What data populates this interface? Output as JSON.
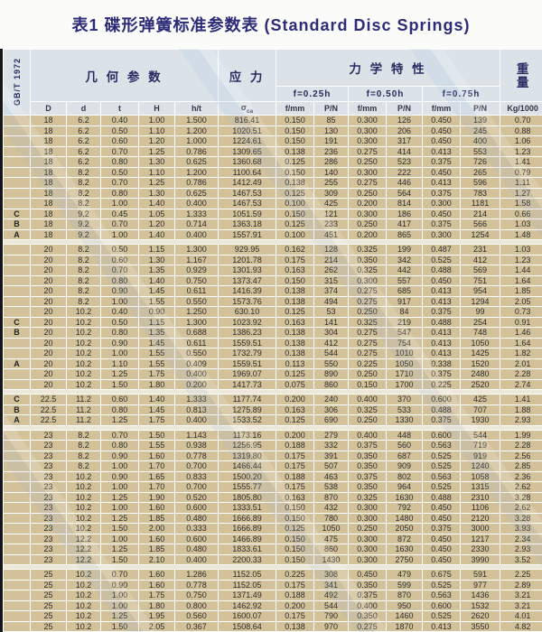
{
  "title": "表1 碟形弹簧标准参数表 (Standard Disc Springs)",
  "table": {
    "standard_label": "GB/T 1972",
    "groups": {
      "geometry": "几 何 参 数",
      "stress": "应 力",
      "mechanical": "力 学 特 性",
      "weight_line1": "重",
      "weight_line2": "量"
    },
    "deflection_headers": [
      "f=0.25h",
      "f=0.50h",
      "f=0.75h"
    ],
    "stress_symbol": "σ",
    "stress_subscript": "ca",
    "columns": [
      "D",
      "d",
      "t",
      "H",
      "h/t",
      "f/mm",
      "P/N",
      "f/mm",
      "P/N",
      "f/mm",
      "P/N",
      "Kg/1000"
    ],
    "blocks": [
      {
        "rows": [
          [
            "",
            "18",
            "6.2",
            "0.40",
            "1.00",
            "1.500",
            "816.41",
            "0.150",
            "85",
            "0.300",
            "126",
            "0.450",
            "139",
            "0.70"
          ],
          [
            "",
            "18",
            "6.2",
            "0.50",
            "1.10",
            "1.200",
            "1020.51",
            "0.150",
            "130",
            "0.300",
            "206",
            "0.450",
            "245",
            "0.88"
          ],
          [
            "",
            "18",
            "6.2",
            "0.60",
            "1.20",
            "1.000",
            "1224.61",
            "0.150",
            "191",
            "0.300",
            "317",
            "0.450",
            "400",
            "1.06"
          ],
          [
            "",
            "18",
            "6.2",
            "0.70",
            "1.25",
            "0.786",
            "1309.65",
            "0.138",
            "236",
            "0.275",
            "414",
            "0.413",
            "553",
            "1.23"
          ],
          [
            "",
            "18",
            "6.2",
            "0.80",
            "1.30",
            "0.625",
            "1360.68",
            "0.125",
            "286",
            "0.250",
            "523",
            "0.375",
            "726",
            "1.41"
          ],
          [
            "",
            "18",
            "8.2",
            "0.50",
            "1.10",
            "1.200",
            "1100.64",
            "0.150",
            "140",
            "0.300",
            "222",
            "0.450",
            "265",
            "0.79"
          ],
          [
            "",
            "18",
            "8.2",
            "0.70",
            "1.25",
            "0.786",
            "1412.49",
            "0.138",
            "255",
            "0.275",
            "446",
            "0.413",
            "596",
            "1.11"
          ],
          [
            "",
            "18",
            "8.2",
            "0.80",
            "1.30",
            "0.625",
            "1467.53",
            "0.125",
            "309",
            "0.250",
            "564",
            "0.375",
            "783",
            "1.27"
          ],
          [
            "",
            "18",
            "8.2",
            "1.00",
            "1.40",
            "0.400",
            "1467.53",
            "0.100",
            "425",
            "0.200",
            "814",
            "0.300",
            "1181",
            "1.58"
          ],
          [
            "C",
            "18",
            "9.2",
            "0.45",
            "1.05",
            "1.333",
            "1051.59",
            "0.150",
            "121",
            "0.300",
            "186",
            "0.450",
            "214",
            "0.66"
          ],
          [
            "B",
            "18",
            "9.2",
            "0.70",
            "1.20",
            "0.714",
            "1363.18",
            "0.125",
            "233",
            "0.250",
            "417",
            "0.375",
            "566",
            "1.03"
          ],
          [
            "A",
            "18",
            "9.2",
            "1.00",
            "1.40",
            "0.400",
            "1557.91",
            "0.100",
            "451",
            "0.200",
            "865",
            "0.300",
            "1254",
            "1.48"
          ]
        ]
      },
      {
        "rows": [
          [
            "",
            "20",
            "8.2",
            "0.50",
            "1.15",
            "1.300",
            "929.95",
            "0.162",
            "128",
            "0.325",
            "199",
            "0.487",
            "231",
            "1.03"
          ],
          [
            "",
            "20",
            "8.2",
            "0.60",
            "1.30",
            "1.167",
            "1201.78",
            "0.175",
            "214",
            "0.350",
            "342",
            "0.525",
            "412",
            "1.23"
          ],
          [
            "",
            "20",
            "8.2",
            "0.70",
            "1.35",
            "0.929",
            "1301.93",
            "0.163",
            "262",
            "0.325",
            "442",
            "0.488",
            "569",
            "1.44"
          ],
          [
            "",
            "20",
            "8.2",
            "0.80",
            "1.40",
            "0.750",
            "1373.47",
            "0.150",
            "315",
            "0.300",
            "557",
            "0.450",
            "751",
            "1.64"
          ],
          [
            "",
            "20",
            "8.2",
            "0.90",
            "1.45",
            "0.611",
            "1416.39",
            "0.138",
            "374",
            "0.275",
            "685",
            "0.413",
            "954",
            "1.85"
          ],
          [
            "",
            "20",
            "8.2",
            "1.00",
            "1.55",
            "0.550",
            "1573.76",
            "0.138",
            "494",
            "0.275",
            "917",
            "0.413",
            "1294",
            "2.05"
          ],
          [
            "",
            "20",
            "10.2",
            "0.40",
            "0.90",
            "1.250",
            "630.10",
            "0.125",
            "53",
            "0.250",
            "84",
            "0.375",
            "99",
            "0.73"
          ],
          [
            "C",
            "20",
            "10.2",
            "0.50",
            "1.15",
            "1.300",
            "1023.92",
            "0.163",
            "141",
            "0.325",
            "219",
            "0.488",
            "254",
            "0.91"
          ],
          [
            "B",
            "20",
            "10.2",
            "0.80",
            "1.35",
            "0.688",
            "1386.23",
            "0.138",
            "304",
            "0.275",
            "547",
            "0.413",
            "748",
            "1.46"
          ],
          [
            "",
            "20",
            "10.2",
            "0.90",
            "1.45",
            "0.611",
            "1559.51",
            "0.138",
            "412",
            "0.275",
            "754",
            "0.413",
            "1050",
            "1.64"
          ],
          [
            "",
            "20",
            "10.2",
            "1.00",
            "1.55",
            "0.550",
            "1732.79",
            "0.138",
            "544",
            "0.275",
            "1010",
            "0.413",
            "1425",
            "1.82"
          ],
          [
            "A",
            "20",
            "10.2",
            "1.10",
            "1.55",
            "0.409",
            "1559.51",
            "0.113",
            "550",
            "0.225",
            "1050",
            "0.338",
            "1520",
            "2.01"
          ],
          [
            "",
            "20",
            "10.2",
            "1.25",
            "1.75",
            "0.400",
            "1969.07",
            "0.125",
            "890",
            "0.250",
            "1710",
            "0.375",
            "2480",
            "2.28"
          ],
          [
            "",
            "20",
            "10.2",
            "1.50",
            "1.80",
            "0.200",
            "1417.73",
            "0.075",
            "860",
            "0.150",
            "1700",
            "0.225",
            "2520",
            "2.74"
          ]
        ]
      },
      {
        "rows": [
          [
            "C",
            "22.5",
            "11.2",
            "0.60",
            "1.40",
            "1.333",
            "1177.74",
            "0.200",
            "240",
            "0.400",
            "370",
            "0.600",
            "425",
            "1.41"
          ],
          [
            "B",
            "22.5",
            "11.2",
            "0.80",
            "1.45",
            "0.813",
            "1275.89",
            "0.163",
            "306",
            "0.325",
            "533",
            "0.488",
            "707",
            "1.88"
          ],
          [
            "A",
            "22.5",
            "11.2",
            "1.25",
            "1.75",
            "0.400",
            "1533.52",
            "0.125",
            "690",
            "0.250",
            "1330",
            "0.375",
            "1930",
            "2.93"
          ]
        ]
      },
      {
        "rows": [
          [
            "",
            "23",
            "8.2",
            "0.70",
            "1.50",
            "1.143",
            "1173.16",
            "0.200",
            "279",
            "0.400",
            "448",
            "0.600",
            "544",
            "1.99"
          ],
          [
            "",
            "23",
            "8.2",
            "0.80",
            "1.55",
            "0.938",
            "1256.95",
            "0.188",
            "332",
            "0.375",
            "560",
            "0.563",
            "719",
            "2.28"
          ],
          [
            "",
            "23",
            "8.2",
            "0.90",
            "1.60",
            "0.778",
            "1319.80",
            "0.175",
            "391",
            "0.350",
            "687",
            "0.525",
            "919",
            "2.56"
          ],
          [
            "",
            "23",
            "8.2",
            "1.00",
            "1.70",
            "0.700",
            "1466.44",
            "0.175",
            "507",
            "0.350",
            "909",
            "0.525",
            "1240",
            "2.85"
          ],
          [
            "",
            "23",
            "10.2",
            "0.90",
            "1.65",
            "0.833",
            "1500.20",
            "0.188",
            "463",
            "0.375",
            "802",
            "0.563",
            "1058",
            "2.36"
          ],
          [
            "",
            "23",
            "10.2",
            "1.00",
            "1.70",
            "0.700",
            "1555.77",
            "0.175",
            "538",
            "0.350",
            "964",
            "0.525",
            "1315",
            "2.62"
          ],
          [
            "",
            "23",
            "10.2",
            "1.25",
            "1.90",
            "0.520",
            "1805.80",
            "0.163",
            "870",
            "0.325",
            "1630",
            "0.488",
            "2310",
            "3.28"
          ],
          [
            "",
            "23",
            "10.2",
            "1.00",
            "1.60",
            "0.600",
            "1333.51",
            "0.150",
            "432",
            "0.300",
            "792",
            "0.450",
            "1106",
            "2.62"
          ],
          [
            "",
            "23",
            "10.2",
            "1.25",
            "1.85",
            "0.480",
            "1666.89",
            "0.150",
            "780",
            "0.300",
            "1480",
            "0.450",
            "2120",
            "3.28"
          ],
          [
            "",
            "23",
            "10.2",
            "1.50",
            "2.00",
            "0.333",
            "1666.89",
            "0.125",
            "1050",
            "0.250",
            "2050",
            "0.375",
            "3000",
            "3.93"
          ],
          [
            "",
            "23",
            "12.2",
            "1.00",
            "1.60",
            "0.600",
            "1466.89",
            "0.150",
            "475",
            "0.300",
            "872",
            "0.450",
            "1217",
            "2.34"
          ],
          [
            "",
            "23",
            "12.2",
            "1.25",
            "1.85",
            "0.480",
            "1833.61",
            "0.150",
            "860",
            "0.300",
            "1630",
            "0.450",
            "2330",
            "2.93"
          ],
          [
            "",
            "23",
            "12.2",
            "1.50",
            "2.10",
            "0.400",
            "2200.33",
            "0.150",
            "1430",
            "0.300",
            "2750",
            "0.450",
            "3990",
            "3.52"
          ]
        ]
      },
      {
        "rows": [
          [
            "",
            "25",
            "10.2",
            "0.70",
            "1.60",
            "1.286",
            "1152.05",
            "0.225",
            "308",
            "0.450",
            "479",
            "0.675",
            "591",
            "2.25"
          ],
          [
            "",
            "25",
            "10.2",
            "0.90",
            "1.60",
            "0.778",
            "1152.05",
            "0.175",
            "341",
            "0.350",
            "599",
            "0.525",
            "977",
            "2.89"
          ],
          [
            "",
            "25",
            "10.2",
            "1.00",
            "1.75",
            "0.750",
            "1371.49",
            "0.188",
            "492",
            "0.375",
            "870",
            "0.563",
            "1436",
            "3.21"
          ],
          [
            "",
            "25",
            "10.2",
            "1.00",
            "1.80",
            "0.800",
            "1462.92",
            "0.200",
            "544",
            "0.400",
            "950",
            "0.600",
            "1532",
            "3.21"
          ],
          [
            "",
            "25",
            "10.2",
            "1.25",
            "1.95",
            "0.560",
            "1600.07",
            "0.175",
            "790",
            "0.350",
            "1460",
            "0.525",
            "2620",
            "4.01"
          ],
          [
            "",
            "25",
            "10.2",
            "1.50",
            "2.05",
            "0.367",
            "1508.64",
            "0.138",
            "970",
            "0.275",
            "1870",
            "0.413",
            "3550",
            "4.82"
          ]
        ]
      }
    ]
  },
  "colors": {
    "title_navy": "#2c2c78",
    "header_blue": "#dbe3e9",
    "row_tan": "#d2c199",
    "grid_white": "#ffffff"
  }
}
